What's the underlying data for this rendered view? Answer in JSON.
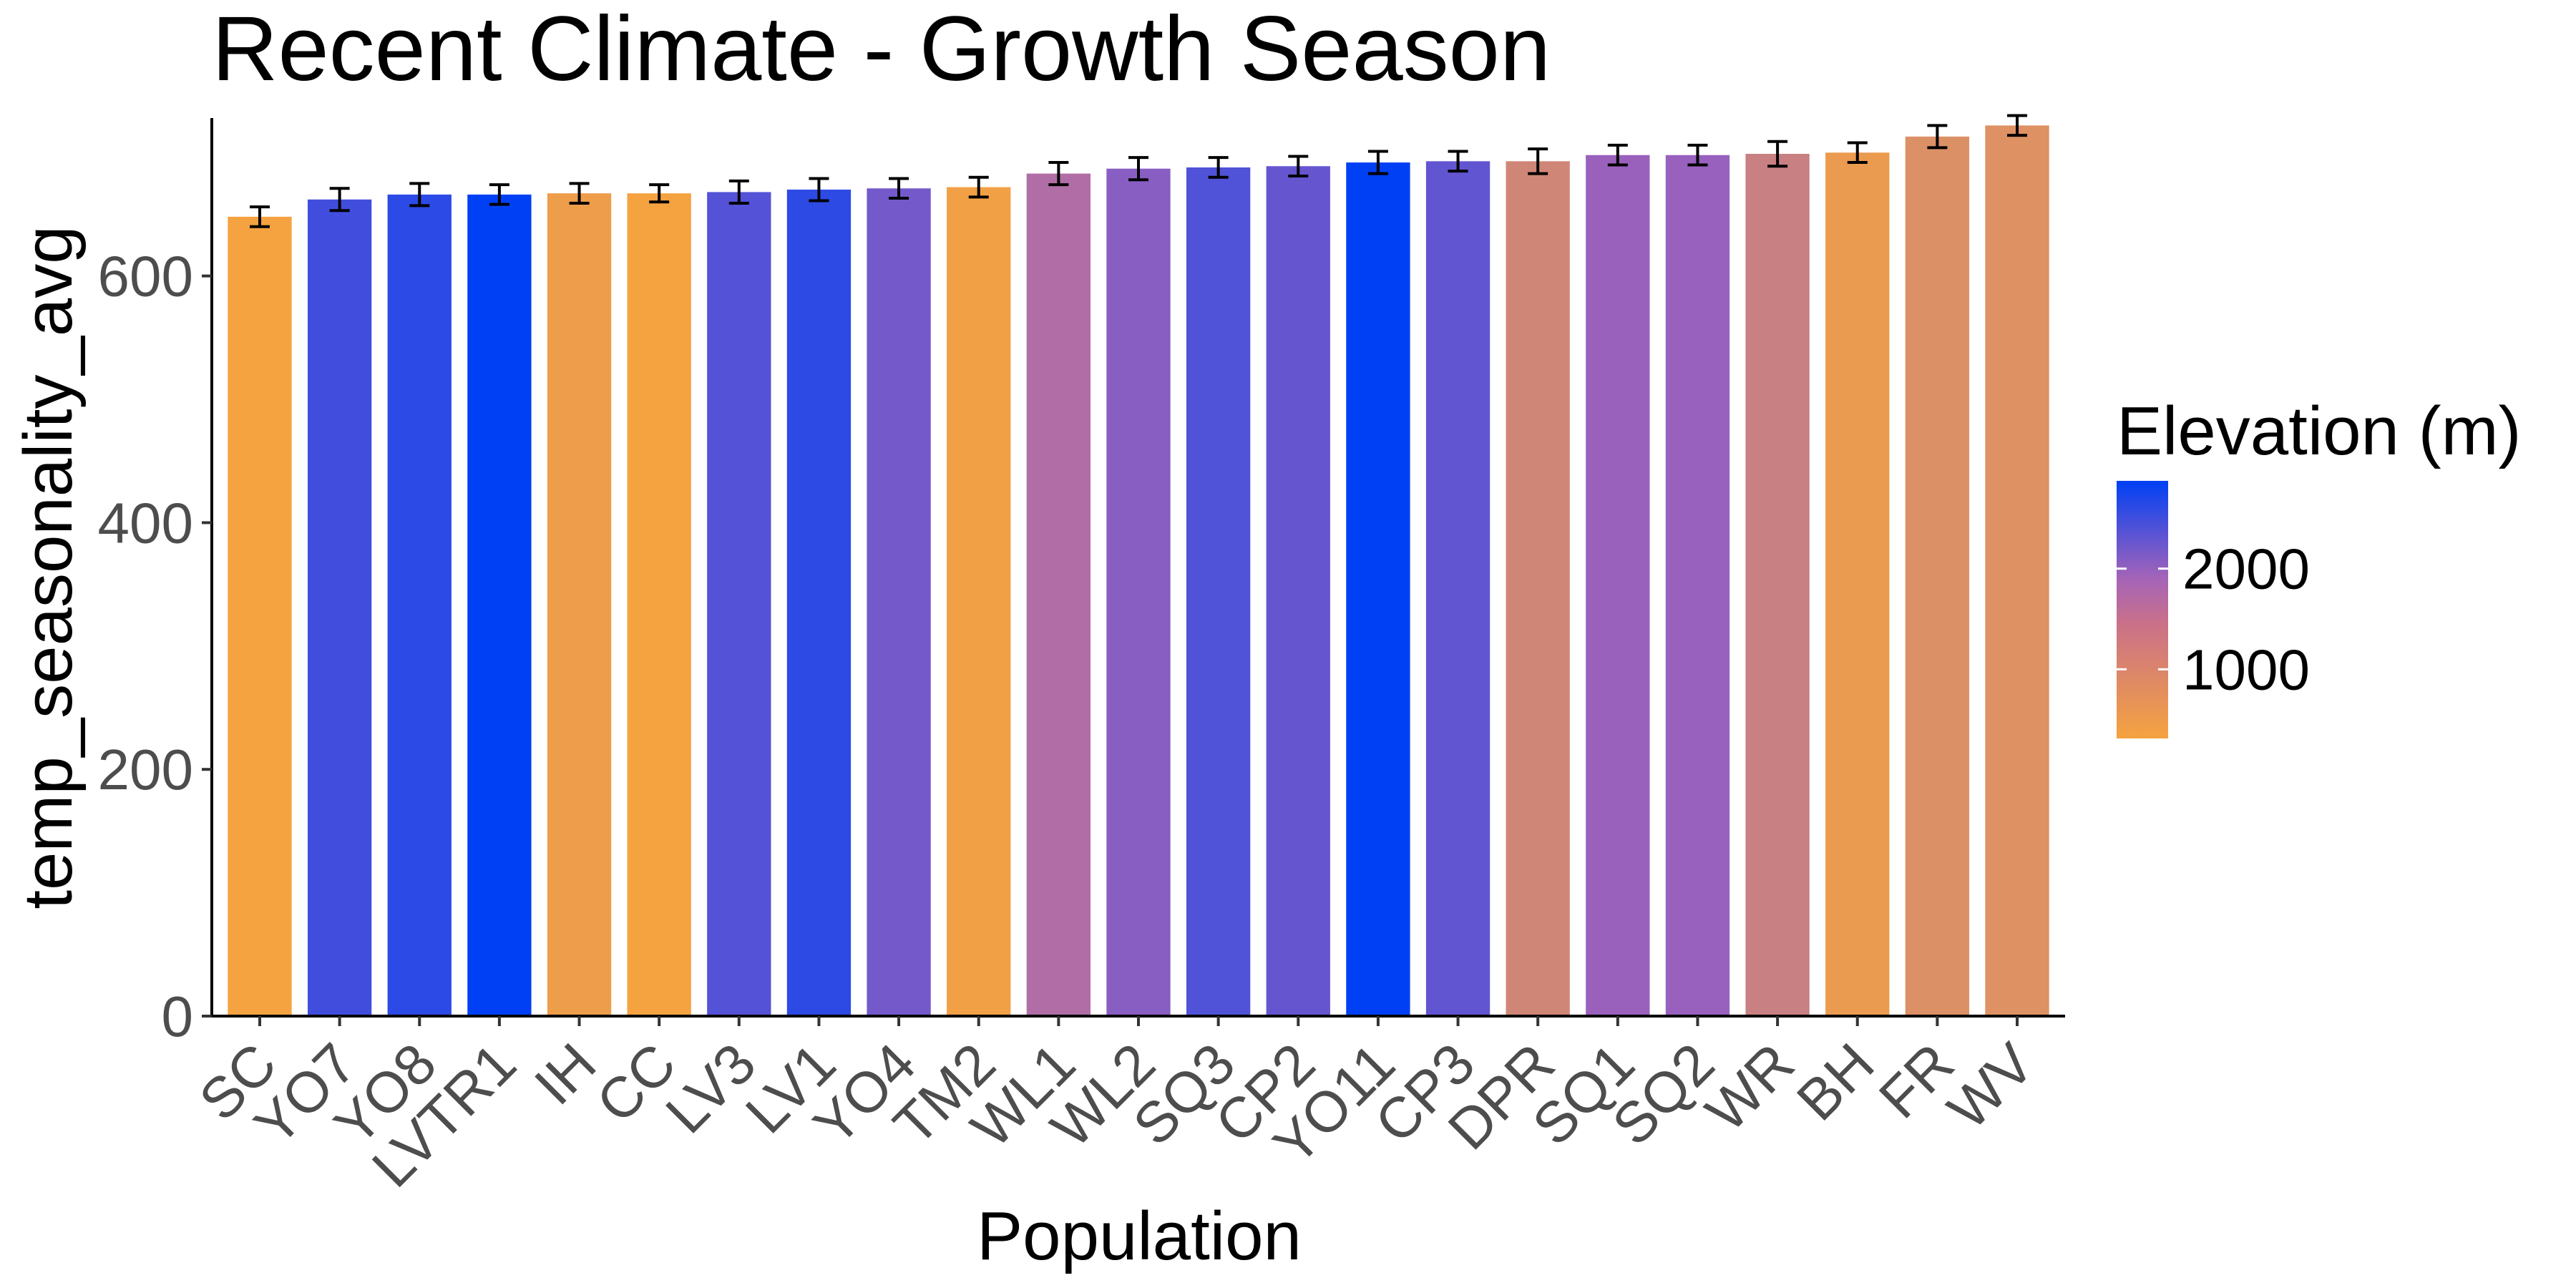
{
  "chart_data": {
    "type": "bar",
    "title": "Recent Climate - Growth Season",
    "xlabel": "Population",
    "ylabel": "temp_seasonality_avg",
    "ylim": [
      0,
      728
    ],
    "yticks": [
      0,
      200,
      400,
      600
    ],
    "grid": false,
    "categories": [
      "SC",
      "YO7",
      "YO8",
      "LVTR1",
      "IH",
      "CC",
      "LV3",
      "LV1",
      "YO4",
      "TM2",
      "WL1",
      "WL2",
      "SQ3",
      "CP2",
      "YO11",
      "CP3",
      "DPR",
      "SQ1",
      "SQ2",
      "WR",
      "BH",
      "FR",
      "WV"
    ],
    "values": [
      648,
      662,
      666,
      666,
      667,
      667,
      668,
      670,
      671,
      672,
      683,
      687,
      688,
      689,
      692,
      693,
      693,
      698,
      698,
      699,
      700,
      713,
      722
    ],
    "errors": [
      8,
      9,
      9,
      8,
      8,
      7,
      9,
      9,
      8,
      8,
      9,
      9,
      8,
      8,
      9,
      8,
      10,
      8,
      8,
      10,
      8,
      9,
      8
    ],
    "elevation_m": [
      313,
      2470,
      2600,
      2870,
      454,
      313,
      2353,
      2593,
      2158,
      379,
      1614,
      2020,
      2373,
      2244,
      2872,
      2266,
      1019,
      1921,
      1934,
      1158,
      511,
      787,
      748
    ],
    "color_scale": {
      "title": "Elevation (m)",
      "ticks": [
        1000,
        2000
      ],
      "range": [
        313,
        2872
      ],
      "low_color": "#f5a340",
      "mid_color": "#a564b8",
      "high_color": "#0040f5"
    }
  }
}
